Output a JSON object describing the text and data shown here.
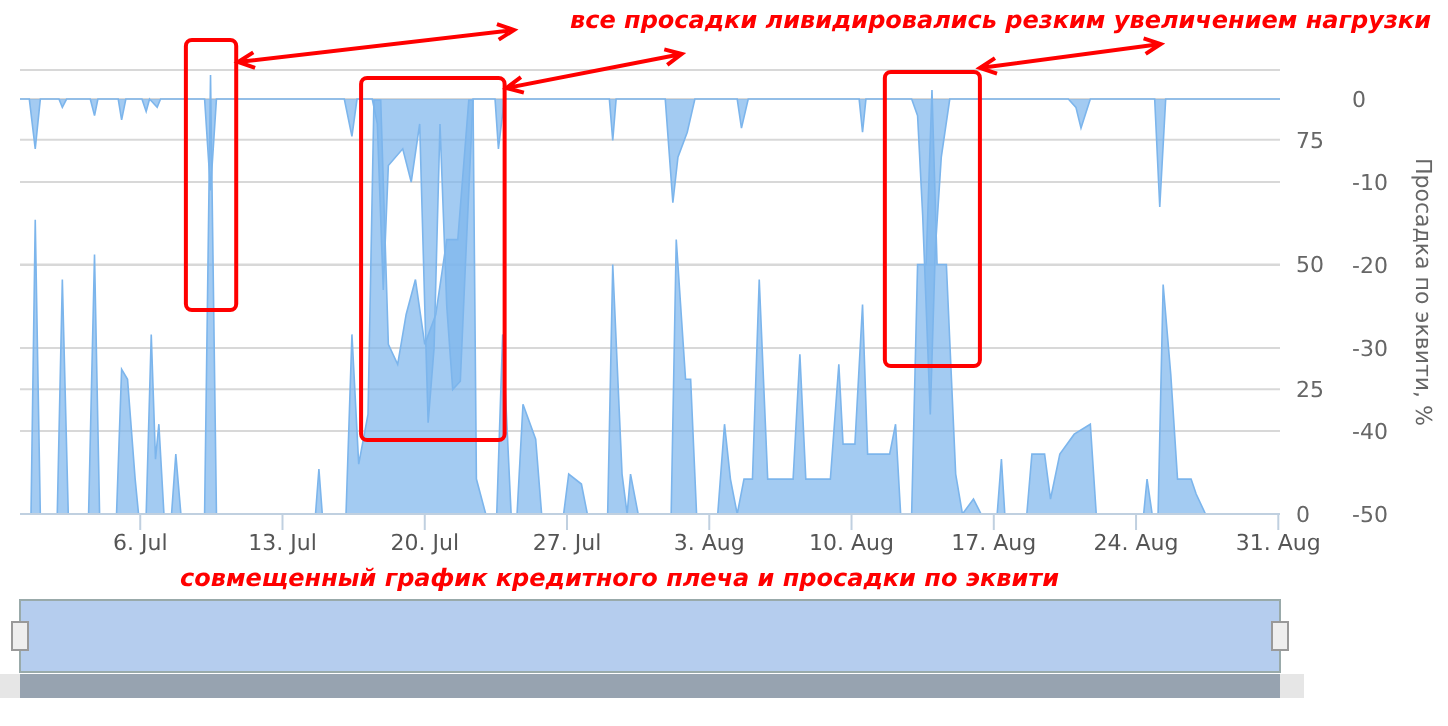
{
  "chart_data": {
    "type": "area",
    "ylabel": "Просадка по эквити, %",
    "annotations": [
      "все просадки ливидировались резким увеличением нагрузки",
      "совмещенный график кредитного плеча и просадки по эквити"
    ],
    "xlim": [
      "--06-30T02:00",
      "--08-31T02:00"
    ],
    "xticks": [
      {
        "value": "--07-06",
        "label": "6. Jul"
      },
      {
        "value": "--07-13",
        "label": "13. Jul"
      },
      {
        "value": "--07-20",
        "label": "20. Jul"
      },
      {
        "value": "--07-27",
        "label": "27. Jul"
      },
      {
        "value": "--08-03",
        "label": "3. Aug"
      },
      {
        "value": "--08-10",
        "label": "10. Aug"
      },
      {
        "value": "--08-17",
        "label": "17. Aug"
      },
      {
        "value": "--08-24",
        "label": "24. Aug"
      },
      {
        "value": "--08-31",
        "label": "31. Aug"
      }
    ],
    "ylim": [
      -50,
      3.5
    ],
    "yticks": [
      0,
      -10,
      -20,
      -30,
      -40,
      -50
    ],
    "y2lim": [
      0,
      89
    ],
    "y2ticks": [
      0,
      25,
      50,
      75
    ],
    "grid": "y",
    "series": [
      {
        "color": "#7cb5ec",
        "axis": "y2",
        "x": [
          "--06-30T02:00",
          "--06-30T15:00",
          "--06-30T20:00",
          "--07-01T02:00",
          "--07-01T22:00",
          "--07-02T04:00",
          "--07-02T11:00",
          "--07-03T11:00",
          "--07-03T18:00",
          "--07-04T00:00",
          "--07-04T20:00",
          "--07-05T02:00",
          "--07-05T09:00",
          "--07-05T18:00",
          "--07-05T22:00",
          "--07-06T07:00",
          "--07-06T13:00",
          "--07-06T18:00",
          "--07-06T22:00",
          "--07-07T04:00",
          "--07-07T13:00",
          "--07-07T18:00",
          "--07-08T00:00",
          "--07-09T04:00",
          "--07-09T11:00",
          "--07-09T18:00",
          "--07-14T15:00",
          "--07-14T19:00",
          "--07-14T23:00",
          "--07-16T03:00",
          "--07-16T10:00",
          "--07-16T18:00",
          "--07-17T05:00",
          "--07-17T12:00",
          "--07-17T20:00",
          "--07-18T05:00",
          "--07-18T16:00",
          "--07-19T02:00",
          "--07-19T13:00",
          "--07-20T00:00",
          "--07-20T13:00",
          "--07-21T02:00",
          "--07-21T15:00",
          "--07-22T04:00",
          "--07-22T09:00",
          "--07-22T13:00",
          "--07-23T00:00",
          "--07-23T13:00",
          "--07-23T20:00",
          "--07-24T06:00",
          "--07-24T13:00",
          "--07-24T20:00",
          "--07-25T11:00",
          "--07-25T18:00",
          "--07-26T20:00",
          "--07-27T02:00",
          "--07-27T17:00",
          "--07-28T00:00",
          "--07-29T00:00",
          "--07-29T06:00",
          "--07-29T17:00",
          "--07-29T23:00",
          "--07-30T03:00",
          "--07-30T12:00",
          "--08-01T03:00",
          "--08-01T09:00",
          "--08-01T20:00",
          "--08-02T02:00",
          "--08-02T09:00",
          "--08-03T10:00",
          "--08-03T18:00",
          "--08-04T01:00",
          "--08-04T09:00",
          "--08-04T17:00",
          "--08-05T03:00",
          "--08-05T11:00",
          "--08-05T21:00",
          "--08-07T03:00",
          "--08-07T11:00",
          "--08-07T18:00",
          "--08-08T23:00",
          "--08-09T09:00",
          "--08-09T14:00",
          "--08-10T04:00",
          "--08-10T13:00",
          "--08-10T19:00",
          "--08-11T21:00",
          "--08-12T04:00",
          "--08-12T10:00",
          "--08-12T23:00",
          "--08-13T06:00",
          "--08-13T16:00",
          "--08-13T23:00",
          "--08-14T05:00",
          "--08-14T16:00",
          "--08-15T03:00",
          "--08-15T11:00",
          "--08-16T00:00",
          "--08-16T09:00",
          "--08-17T04:00",
          "--08-17T09:00",
          "--08-17T13:00",
          "--08-18T15:00",
          "--08-18T21:00",
          "--08-19T12:00",
          "--08-19T19:00",
          "--08-20T06:00",
          "--08-20T23:00",
          "--08-21T18:00",
          "--08-22T01:00",
          "--08-24T09:00",
          "--08-24T13:00",
          "--08-24T19:00",
          "--08-25T02:00",
          "--08-25T08:00",
          "--08-25T17:00",
          "--08-26T01:00",
          "--08-26T17:00",
          "--08-26T23:00",
          "--08-27T10:00",
          "--08-31T02:00"
        ],
        "values": [
          0,
          0,
          59,
          0,
          0,
          47,
          0,
          0,
          52,
          0,
          0,
          29,
          27,
          7,
          0,
          0,
          36,
          11,
          18,
          0,
          0,
          12,
          0,
          0,
          88,
          0,
          0,
          9,
          0,
          0,
          36,
          10,
          20,
          83,
          83,
          34,
          30,
          40,
          47,
          34,
          40,
          55,
          55,
          83,
          83,
          7,
          0,
          0,
          36,
          0,
          0,
          22,
          15,
          0,
          0,
          8,
          6,
          0,
          0,
          50,
          8,
          0,
          8,
          0,
          0,
          55,
          27,
          27,
          0,
          0,
          18,
          7,
          0,
          7,
          7,
          47,
          7,
          7,
          32,
          7,
          7,
          30,
          14,
          14,
          42,
          12,
          12,
          18,
          0,
          0,
          50,
          50,
          85,
          50,
          50,
          8,
          0,
          3,
          0,
          0,
          11,
          0,
          0,
          12,
          12,
          3,
          12,
          16,
          18,
          0,
          0,
          7,
          0,
          0,
          46,
          28,
          7,
          7,
          4,
          0,
          0
        ]
      },
      {
        "color": "#7cb5ec",
        "x": [
          "--06-30T02:00",
          "--06-30T13:00",
          "--06-30T20:00",
          "--07-01T02:00",
          "--07-02T00:00",
          "--07-02T04:00",
          "--07-02T09:00",
          "--07-03T13:00",
          "--07-03T18:00",
          "--07-03T22:00",
          "--07-04T22:00",
          "--07-05T02:00",
          "--07-05T07:00",
          "--07-06T02:00",
          "--07-06T07:00",
          "--07-06T11:00",
          "--07-06T20:00",
          "--07-07T00:00",
          "--07-09T04:00",
          "--07-09T11:00",
          "--07-09T18:00",
          "--07-16T01:00",
          "--07-16T10:00",
          "--07-16T16:00",
          "--07-17T10:00",
          "--07-17T16:00",
          "--07-17T23:00",
          "--07-18T05:00",
          "--07-18T22:00",
          "--07-19T08:00",
          "--07-19T18:00",
          "--07-20T00:00",
          "--07-20T04:00",
          "--07-20T11:00",
          "--07-20T18:00",
          "--07-21T02:00",
          "--07-21T09:00",
          "--07-21T18:00",
          "--07-22T00:00",
          "--07-22T09:00",
          "--07-23T11:00",
          "--07-23T15:00",
          "--07-23T22:00",
          "--07-29T02:00",
          "--07-29T06:00",
          "--07-29T10:00",
          "--07-31T20:00",
          "--08-01T05:00",
          "--08-01T11:00",
          "--08-01T22:00",
          "--08-02T07:00",
          "--08-04T09:00",
          "--08-04T14:00",
          "--08-04T22:00",
          "--08-10T09:00",
          "--08-10T13:00",
          "--08-10T17:00",
          "--08-12T23:00",
          "--08-13T06:00",
          "--08-13T12:00",
          "--08-13T21:00",
          "--08-14T03:00",
          "--08-14T10:00",
          "--08-14T20:00",
          "--08-20T16:00",
          "--08-21T01:00",
          "--08-21T07:00",
          "--08-21T18:00",
          "--08-24T22:00",
          "--08-25T04:00",
          "--08-25T11:00",
          "--08-31T02:00"
        ],
        "values": [
          0,
          0,
          -6,
          0,
          0,
          -1,
          0,
          0,
          -2,
          0,
          0,
          -2.5,
          0,
          0,
          -1.5,
          0,
          -1,
          0,
          0,
          -11,
          0,
          0,
          -4.5,
          0,
          0,
          -3,
          -23,
          -8,
          -6,
          -10,
          -3,
          -25,
          -39,
          -30,
          -3,
          -25,
          -35,
          -34,
          -20,
          0,
          0,
          -6,
          0,
          0,
          -5,
          0,
          0,
          -12.5,
          -7,
          -4,
          0,
          0,
          -3.5,
          0,
          0,
          -4,
          0,
          0,
          -2,
          -14,
          -38,
          -18,
          -7,
          0,
          0,
          -1,
          -3.5,
          0,
          0,
          -13,
          0,
          0
        ]
      }
    ]
  }
}
